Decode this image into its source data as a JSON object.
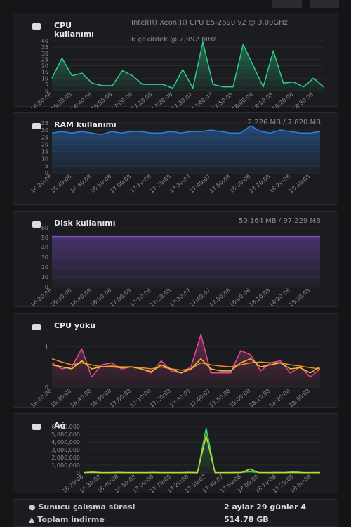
{
  "chart_data": [
    {
      "type": "area",
      "title": "CPU kullanımı",
      "subtitle": [
        "Intel(R) Xeon(R) CPU E5-2690 v2 @ 3.00GHz",
        "6 çekirdek @ 2,992 MHz"
      ],
      "categories": [
        "16:20:08",
        null,
        "16:30:08",
        null,
        "16:40:08",
        null,
        "16:50:08",
        null,
        "17:00:08",
        null,
        "17:10:08",
        null,
        "17:20:08",
        null,
        "17:30:07",
        null,
        "17:40:07",
        null,
        "17:50:08",
        null,
        "18:00:08",
        null,
        "18:10:08",
        null,
        "18:20:08",
        null,
        "18:30:08",
        null
      ],
      "series": [
        {
          "color": "#2ecc8a",
          "values": [
            10,
            26,
            12,
            14,
            6,
            4,
            4,
            16,
            12,
            5,
            5,
            5,
            2,
            17,
            2,
            39,
            5,
            3,
            3,
            37,
            20,
            3,
            32,
            6,
            7,
            3,
            10,
            3
          ]
        }
      ],
      "ylim": [
        0,
        40
      ],
      "yticks": [
        0,
        5,
        10,
        15,
        20,
        25,
        30,
        35,
        40
      ]
    },
    {
      "type": "area",
      "title": "RAM kullanımı",
      "subtitle": [
        "2,226 MB / 7,820 MB"
      ],
      "categories": [
        "16:20:08",
        null,
        "16:30:08",
        null,
        "16:40:08",
        null,
        "16:50:08",
        null,
        "17:00:08",
        null,
        "17:10:08",
        null,
        "17:20:08",
        null,
        "17:30:07",
        null,
        "17:40:07",
        null,
        "17:50:08",
        null,
        "18:00:08",
        null,
        "18:10:08",
        null,
        "18:20:08",
        null,
        "18:30:08",
        null
      ],
      "series": [
        {
          "color": "#2f7fe0",
          "values": [
            28,
            29,
            28,
            29,
            28,
            27,
            29,
            28,
            29,
            29,
            28,
            28,
            29,
            28,
            29,
            29,
            30,
            29,
            28,
            28,
            33,
            29,
            28,
            30,
            29,
            28,
            28,
            29
          ]
        }
      ],
      "ylim": [
        0,
        35
      ],
      "yticks": [
        0,
        5,
        10,
        15,
        20,
        25,
        30,
        35
      ]
    },
    {
      "type": "area",
      "title": "Disk kullanımı",
      "subtitle": [
        "50,164 MB / 97,229 MB"
      ],
      "categories": [
        "16:20:08",
        null,
        "16:30:08",
        null,
        "16:40:08",
        null,
        "16:50:08",
        null,
        "17:00:08",
        null,
        "17:10:08",
        null,
        "17:20:08",
        null,
        "17:30:07",
        null,
        "17:40:07",
        null,
        "17:50:08",
        null,
        "18:00:08",
        null,
        "18:10:08",
        null,
        "18:20:08",
        null,
        "18:30:08",
        null
      ],
      "series": [
        {
          "color": "#7a4fc4",
          "values": [
            51,
            51,
            51,
            51,
            51,
            51,
            51,
            51,
            51,
            51,
            51,
            51,
            51,
            51,
            51,
            51,
            51,
            51,
            51,
            51,
            51,
            51,
            51,
            51,
            51,
            51,
            51,
            51
          ]
        }
      ],
      "ylim": [
        0,
        60
      ],
      "yticks": [
        0,
        10,
        20,
        30,
        40,
        50,
        60
      ]
    },
    {
      "type": "area",
      "title": "CPU yükü",
      "categories": [
        "16:20:08",
        null,
        "16:30:08",
        null,
        "16:40:08",
        null,
        "16:50:08",
        null,
        "17:00:08",
        null,
        "17:10:08",
        null,
        "17:20:08",
        null,
        "17:30:07",
        null,
        "17:40:07",
        null,
        "17:50:08",
        null,
        "18:00:08",
        null,
        "18:10:08",
        null,
        "18:20:08",
        null,
        "18:30:08",
        null
      ],
      "series": [
        {
          "color": "#e8489a",
          "values": [
            0.6,
            0.45,
            0.5,
            0.95,
            0.25,
            0.55,
            0.6,
            0.45,
            0.5,
            0.45,
            0.35,
            0.65,
            0.4,
            0.35,
            0.5,
            1.3,
            0.35,
            0.35,
            0.35,
            0.9,
            0.8,
            0.4,
            0.6,
            0.65,
            0.35,
            0.5,
            0.25,
            0.45
          ]
        },
        {
          "color": "#f08a30",
          "values": [
            0.7,
            0.62,
            0.55,
            0.6,
            0.55,
            0.5,
            0.52,
            0.5,
            0.5,
            0.48,
            0.45,
            0.5,
            0.45,
            0.42,
            0.45,
            0.6,
            0.55,
            0.52,
            0.5,
            0.55,
            0.6,
            0.62,
            0.6,
            0.6,
            0.55,
            0.52,
            0.48,
            0.45
          ]
        },
        {
          "color": "#f2c230",
          "values": [
            0.55,
            0.5,
            0.45,
            0.65,
            0.45,
            0.5,
            0.5,
            0.48,
            0.5,
            0.45,
            0.38,
            0.55,
            0.45,
            0.35,
            0.45,
            0.7,
            0.45,
            0.4,
            0.4,
            0.6,
            0.7,
            0.5,
            0.55,
            0.6,
            0.45,
            0.48,
            0.35,
            0.5
          ]
        }
      ],
      "ylim": [
        0,
        1.3
      ],
      "yticks": [
        0,
        1
      ]
    },
    {
      "type": "area",
      "title": "Ağ",
      "categories": [
        "16:20:08",
        null,
        "16:30:08",
        null,
        "16:40:08",
        null,
        "16:50:08",
        null,
        "17:00:08",
        null,
        "17:10:08",
        null,
        "17:20:08",
        null,
        "17:30:07",
        null,
        "17:40:07",
        null,
        "17:50:08",
        null,
        "18:00:08",
        null,
        "18:10:08",
        null,
        "18:20:08",
        null,
        "18:30:08",
        null
      ],
      "series": [
        {
          "color": "#3ccf6a",
          "values": [
            50000,
            120000,
            60000,
            50000,
            80000,
            50000,
            60000,
            50000,
            70000,
            50000,
            60000,
            50000,
            80000,
            60000,
            5800000,
            60000,
            50000,
            60000,
            70000,
            150000,
            60000,
            50000,
            70000,
            60000,
            150000,
            60000,
            50000,
            60000
          ]
        },
        {
          "color": "#c8d430",
          "values": [
            20000,
            60000,
            20000,
            20000,
            30000,
            20000,
            20000,
            20000,
            30000,
            20000,
            20000,
            20000,
            30000,
            20000,
            4800000,
            20000,
            20000,
            20000,
            30000,
            500000,
            30000,
            20000,
            20000,
            20000,
            50000,
            20000,
            20000,
            20000
          ]
        }
      ],
      "ylim": [
        0,
        6000000
      ],
      "yticks": [
        0,
        {
          "value": 1000000,
          "label": "1,000,000"
        },
        {
          "value": 2000000,
          "label": "2,000,000"
        },
        {
          "value": 3000000,
          "label": "3,000,000"
        },
        {
          "value": 4000000,
          "label": "4,000,000"
        },
        {
          "value": 5000000,
          "label": "5,000,000"
        },
        {
          "value": 6000000,
          "label": "6,000,000"
        }
      ]
    }
  ],
  "info": {
    "rows": [
      [
        "Sunucu çalışma süresi",
        "2 aylar 29 günler 4"
      ],
      [
        "Toplam indirme",
        "514.78 GB"
      ]
    ]
  }
}
